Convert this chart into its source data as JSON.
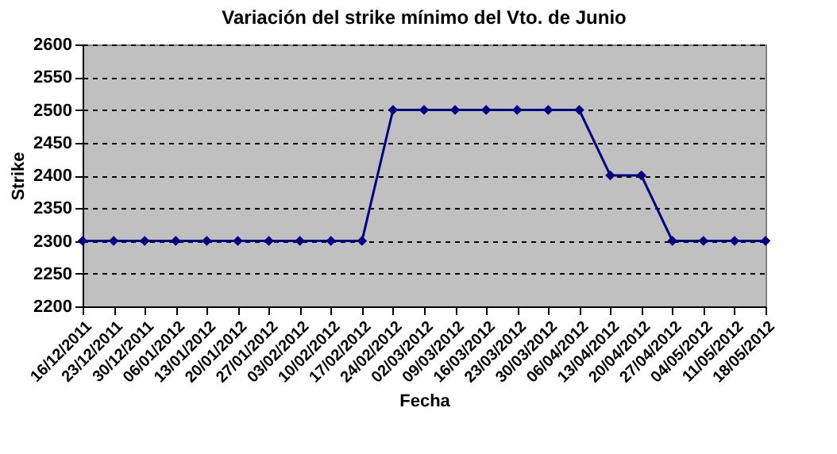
{
  "chart_data": {
    "type": "line",
    "title": "Variación del strike mínimo del Vto. de Junio",
    "xlabel": "Fecha",
    "ylabel": "Strike",
    "categories": [
      "16/12/2011",
      "23/12/2011",
      "30/12/2011",
      "06/01/2012",
      "13/01/2012",
      "20/01/2012",
      "27/01/2012",
      "03/02/2012",
      "10/02/2012",
      "17/02/2012",
      "24/02/2012",
      "02/03/2012",
      "09/03/2012",
      "16/03/2012",
      "23/03/2012",
      "30/03/2012",
      "06/04/2012",
      "13/04/2012",
      "20/04/2012",
      "27/04/2012",
      "04/05/2012",
      "11/05/2012",
      "18/05/2012"
    ],
    "series": [
      {
        "color": "#000080",
        "values": [
          2300,
          2300,
          2300,
          2300,
          2300,
          2300,
          2300,
          2300,
          2300,
          2300,
          2500,
          2500,
          2500,
          2500,
          2500,
          2500,
          2500,
          2400,
          2400,
          2300,
          2300,
          2300,
          2300
        ]
      }
    ],
    "ylim": [
      2200,
      2600
    ],
    "yticks": [
      2200,
      2250,
      2300,
      2350,
      2400,
      2450,
      2500,
      2550,
      2600
    ],
    "grid": "y",
    "marker": "diamond",
    "line_style": "solid"
  }
}
